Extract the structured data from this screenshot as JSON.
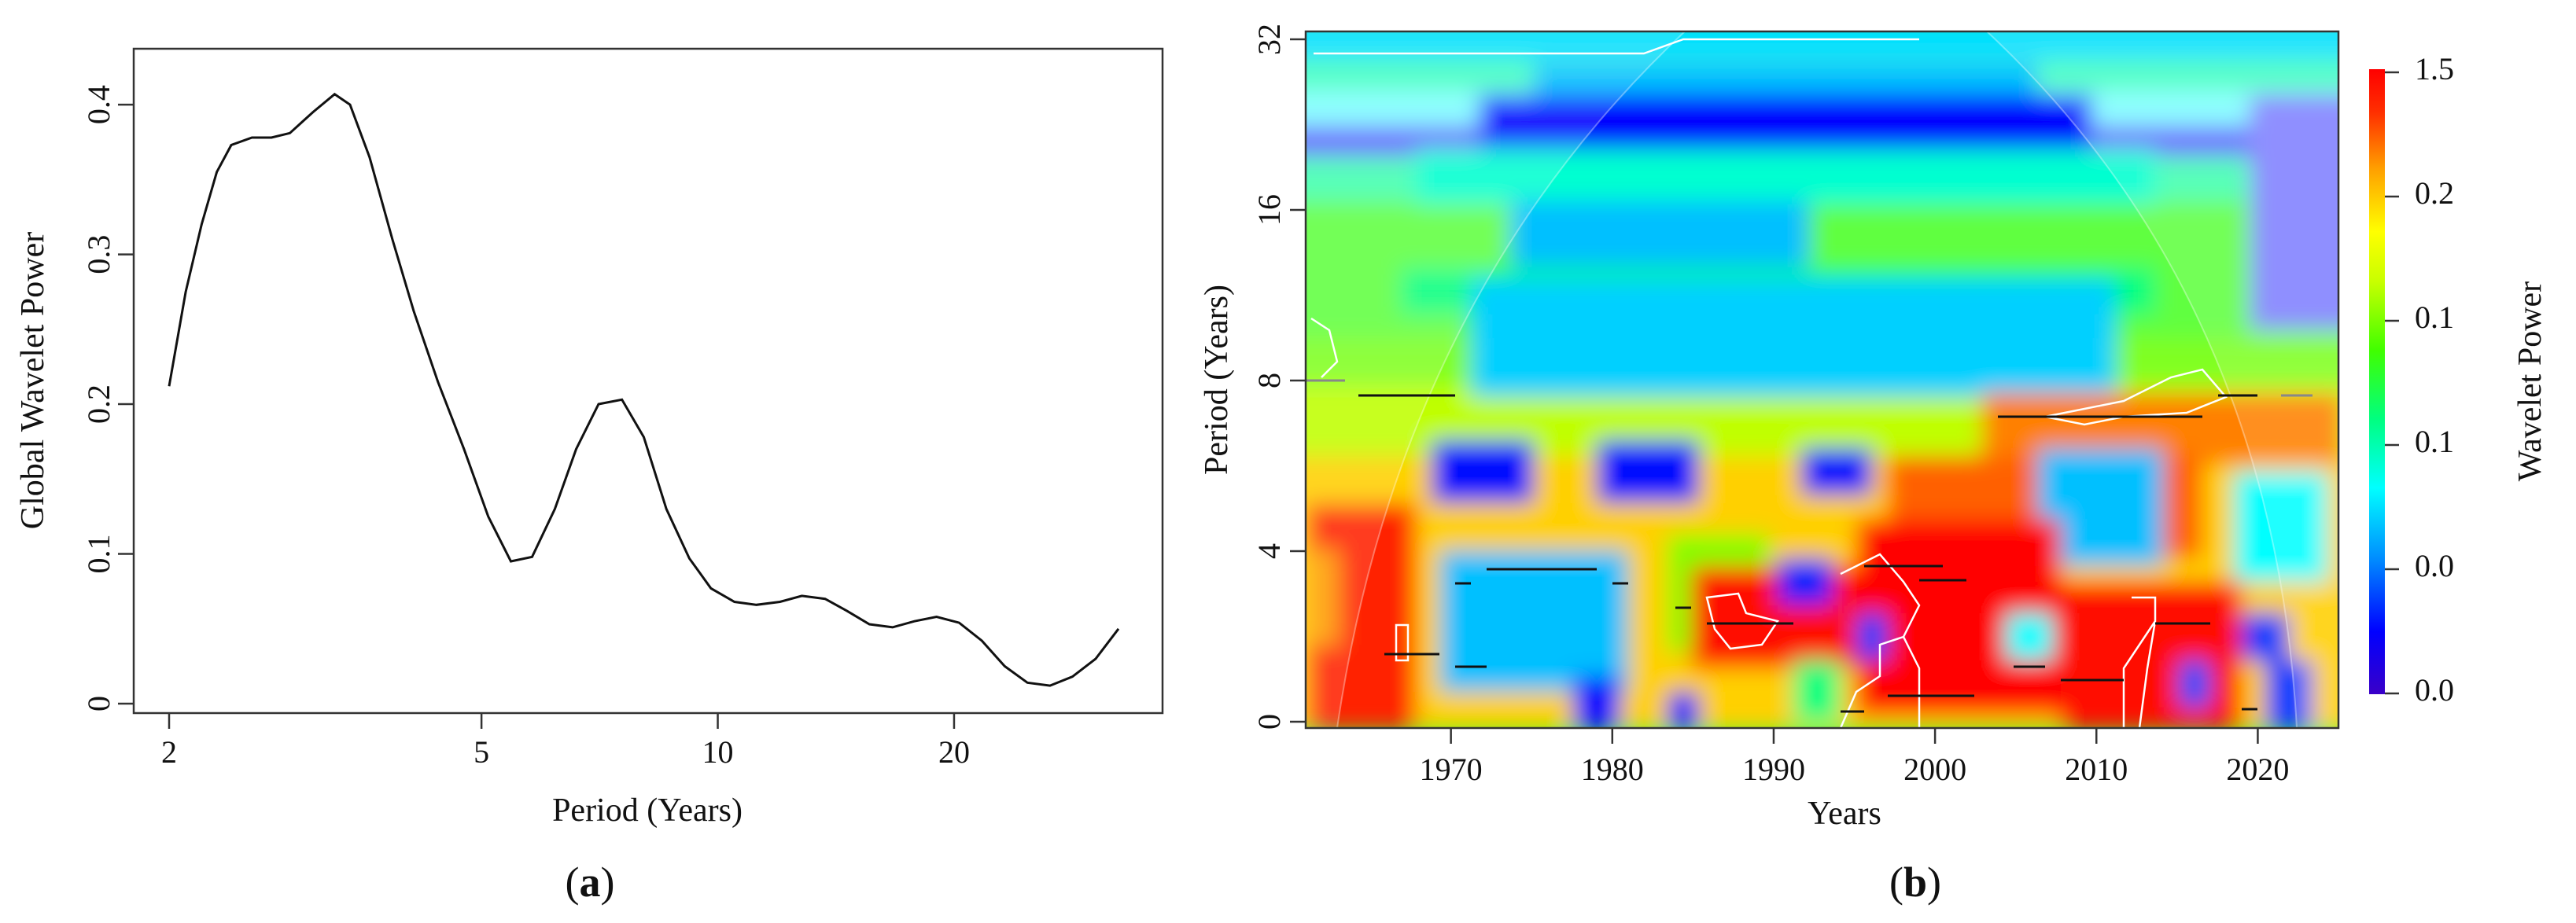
{
  "panel_a": {
    "label_open": "(",
    "label_letter": "a",
    "label_close": ")"
  },
  "panel_b": {
    "label_open": "(",
    "label_letter": "b",
    "label_close": ")"
  },
  "colors": {
    "line": "#111111",
    "axis": "#333333",
    "colormap": [
      "#3a00c8",
      "#0000ff",
      "#00a0ff",
      "#00ffff",
      "#00ff80",
      "#40ff00",
      "#c8ff00",
      "#ffff00",
      "#ffa000",
      "#ff3000",
      "#ff0000"
    ]
  },
  "chart_data": [
    {
      "type": "line",
      "panel": "a",
      "xlabel": "Period (Years)",
      "ylabel": "Global Wavelet Power",
      "x_scale": "log",
      "xlim": [
        2,
        33
      ],
      "ylim": [
        0,
        0.42
      ],
      "x_ticks": [
        2,
        5,
        10,
        20
      ],
      "x_tick_labels": [
        "2",
        "5",
        "10",
        "20"
      ],
      "y_ticks": [
        0,
        0.1,
        0.2,
        0.3,
        0.4
      ],
      "y_tick_labels": [
        "0",
        "0.1",
        "0.2",
        "0.3",
        "0.4"
      ],
      "x": [
        2.0,
        2.1,
        2.2,
        2.3,
        2.4,
        2.55,
        2.7,
        2.85,
        3.05,
        3.25,
        3.4,
        3.6,
        3.85,
        4.1,
        4.4,
        4.75,
        5.1,
        5.45,
        5.8,
        6.2,
        6.6,
        7.05,
        7.55,
        8.05,
        8.6,
        9.2,
        9.8,
        10.5,
        11.2,
        12.0,
        12.8,
        13.7,
        14.6,
        15.6,
        16.7,
        17.8,
        19.0,
        20.3,
        21.7,
        23.2,
        24.8,
        26.5,
        28.3,
        30.3,
        32.4
      ],
      "series": [
        {
          "values": [
            0.212,
            0.275,
            0.32,
            0.355,
            0.373,
            0.378,
            0.378,
            0.381,
            0.395,
            0.407,
            0.4,
            0.365,
            0.31,
            0.262,
            0.215,
            0.17,
            0.125,
            0.095,
            0.098,
            0.13,
            0.17,
            0.2,
            0.203,
            0.178,
            0.13,
            0.097,
            0.077,
            0.068,
            0.066,
            0.068,
            0.072,
            0.07,
            0.062,
            0.053,
            0.051,
            0.055,
            0.058,
            0.054,
            0.042,
            0.025,
            0.014,
            0.012,
            0.018,
            0.03,
            0.05
          ]
        }
      ]
    },
    {
      "type": "heatmap",
      "panel": "b",
      "xlabel": "Years",
      "ylabel": "Period (Years)",
      "xlim": [
        1961,
        2025
      ],
      "x_ticks": [
        1970,
        1980,
        1990,
        2000,
        2010,
        2020
      ],
      "x_tick_labels": [
        "1970",
        "1980",
        "1990",
        "2000",
        "2010",
        "2020"
      ],
      "y_scale": "log2",
      "y_ticks": [
        0,
        4,
        8,
        16,
        32
      ],
      "y_tick_labels": [
        "0",
        "4",
        "8",
        "16",
        "32"
      ],
      "colorbar": {
        "label": "Wavelet Power",
        "tick_labels": [
          "1.5",
          "0.2",
          "0.1",
          "0.1",
          "0.0",
          "0.0"
        ]
      },
      "notes": "Wavelet power spectrum; high power (red) at periods ~2-5 years around 1965-1970, 1985-1992 and 1995-2015; low power (blue) bands near periods 9-10 and 14-16 years; white contours mark significant regions; shaded cone of influence."
    }
  ]
}
